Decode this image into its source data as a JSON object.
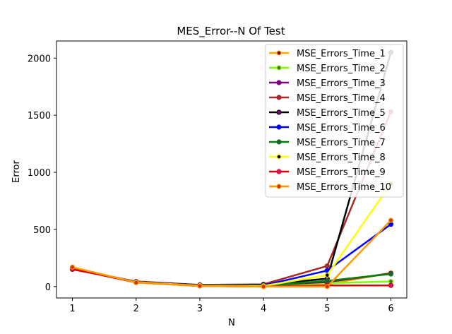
{
  "chart_data": {
    "type": "line",
    "title": "MES_Error--N Of Test",
    "xlabel": "N",
    "ylabel": "Error",
    "x": [
      1,
      2,
      3,
      4,
      5,
      6
    ],
    "xlim": [
      0.75,
      6.25
    ],
    "ylim": [
      -100,
      2150
    ],
    "xticks": [
      1,
      2,
      3,
      4,
      5,
      6
    ],
    "yticks": [
      0,
      500,
      1000,
      1500,
      2000
    ],
    "grid": false,
    "legend_position": "top-right",
    "series": [
      {
        "name": "MSE_Errors_Time_1",
        "color": "#ffa500",
        "marker_color": "#8b0000",
        "values": [
          165,
          40,
          10,
          5,
          20,
          120
        ]
      },
      {
        "name": "MSE_Errors_Time_2",
        "color": "#7cfc00",
        "marker_color": "#556b2f",
        "values": [
          160,
          38,
          8,
          5,
          30,
          45
        ]
      },
      {
        "name": "MSE_Errors_Time_3",
        "color": "#800080",
        "marker_color": "#800080",
        "values": [
          155,
          42,
          12,
          10,
          40,
          115
        ]
      },
      {
        "name": "MSE_Errors_Time_4",
        "color": "#a52a2a",
        "marker_color": "#a52a2a",
        "values": [
          150,
          45,
          15,
          20,
          180,
          1530
        ]
      },
      {
        "name": "MSE_Errors_Time_5",
        "color": "#000000",
        "marker_color": "#800080",
        "values": [
          155,
          40,
          12,
          15,
          70,
          2050
        ]
      },
      {
        "name": "MSE_Errors_Time_6",
        "color": "#0000ff",
        "marker_color": "#0000ff",
        "values": [
          160,
          40,
          10,
          10,
          140,
          545
        ]
      },
      {
        "name": "MSE_Errors_Time_7",
        "color": "#008000",
        "marker_color": "#2f4f4f",
        "values": [
          158,
          38,
          8,
          8,
          50,
          110
        ]
      },
      {
        "name": "MSE_Errors_Time_8",
        "color": "#ffff00",
        "marker_color": "#000000",
        "values": [
          162,
          38,
          8,
          5,
          100,
          900
        ]
      },
      {
        "name": "MSE_Errors_Time_9",
        "color": "#e00000",
        "marker_color": "#c71585",
        "values": [
          155,
          35,
          5,
          0,
          10,
          10
        ]
      },
      {
        "name": "MSE_Errors_Time_10",
        "color": "#ff9900",
        "marker_color": "#cc3300",
        "values": [
          170,
          35,
          5,
          0,
          0,
          580
        ]
      }
    ]
  }
}
